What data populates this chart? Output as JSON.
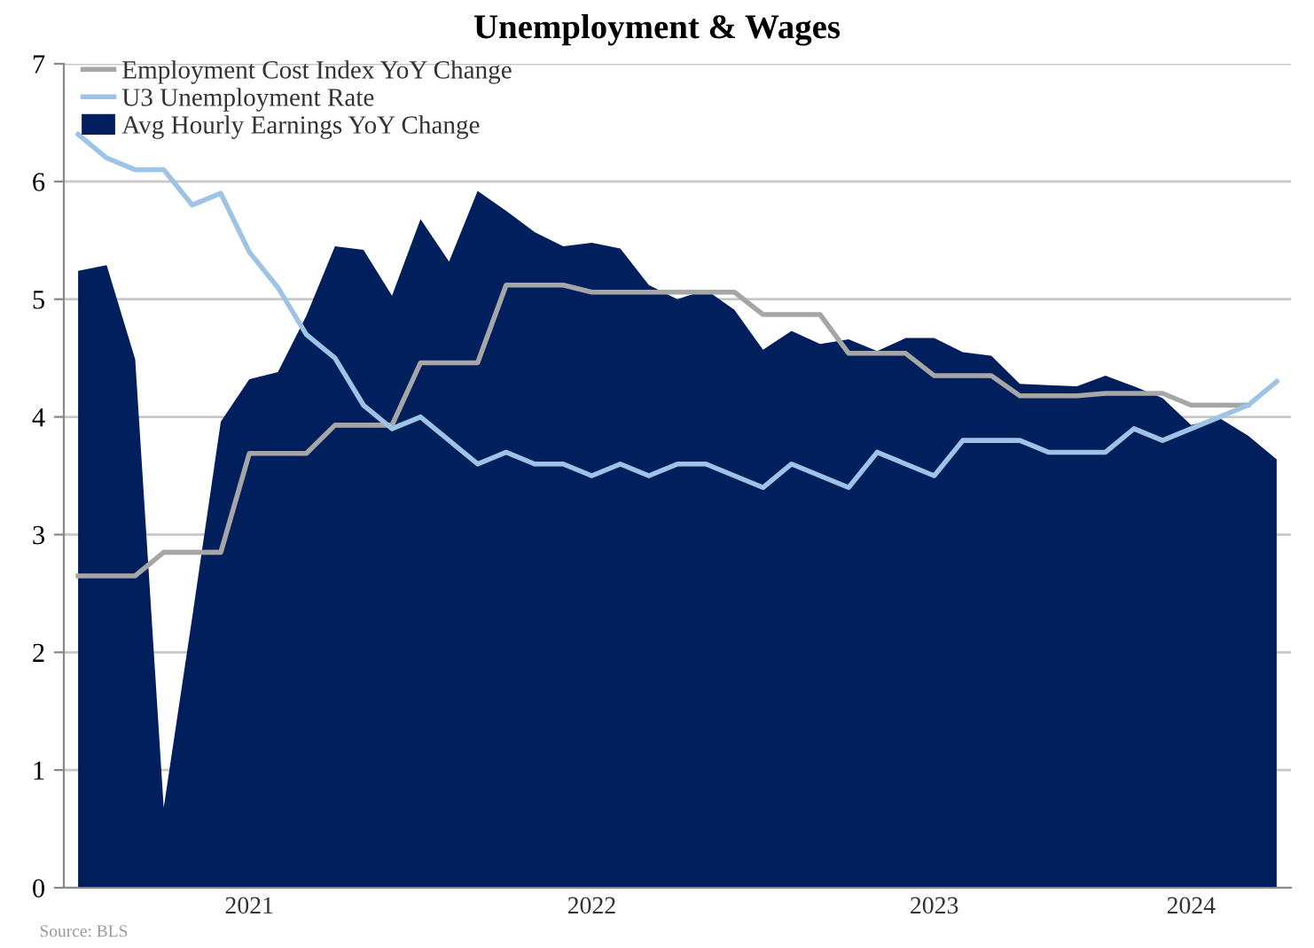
{
  "chart_data": {
    "type": "line",
    "title": "Unemployment & Wages",
    "categories": [
      null,
      null,
      null,
      null,
      null,
      null,
      "2021",
      null,
      null,
      null,
      null,
      null,
      null,
      null,
      null,
      null,
      null,
      null,
      "2022",
      null,
      null,
      null,
      null,
      null,
      null,
      null,
      null,
      null,
      null,
      null,
      "2023",
      null,
      null,
      null,
      null,
      null,
      null,
      null,
      null,
      "2024",
      null,
      null,
      null
    ],
    "series": [
      {
        "name": "Employment Cost Index YoY Change",
        "color": "#a6a6a6",
        "values": [
          2.65,
          2.65,
          2.65,
          2.85,
          2.85,
          2.85,
          3.69,
          3.69,
          3.69,
          3.93,
          3.93,
          3.93,
          4.46,
          4.46,
          4.46,
          5.12,
          5.12,
          5.12,
          5.06,
          5.06,
          5.06,
          5.06,
          5.06,
          5.06,
          4.87,
          4.87,
          4.87,
          4.54,
          4.54,
          4.54,
          4.35,
          4.35,
          4.35,
          4.18,
          4.18,
          4.18,
          4.2,
          4.2,
          4.2,
          4.1,
          4.1,
          4.1,
          null
        ]
      },
      {
        "name": "U3 Unemployment Rate",
        "color": "#9dc3e6",
        "values": [
          6.4,
          6.2,
          6.1,
          6.1,
          5.8,
          5.9,
          5.4,
          5.1,
          4.7,
          4.5,
          4.1,
          3.9,
          4.0,
          3.8,
          3.6,
          3.7,
          3.6,
          3.6,
          3.5,
          3.6,
          3.5,
          3.6,
          3.6,
          3.5,
          3.4,
          3.6,
          3.5,
          3.4,
          3.7,
          3.6,
          3.5,
          3.8,
          3.8,
          3.8,
          3.7,
          3.7,
          3.7,
          3.9,
          3.8,
          3.9,
          4.0,
          4.1,
          4.3
        ]
      },
      {
        "name": "Avg Hourly Earnings YoY Change",
        "type": "area",
        "color": "#001f5c",
        "values": [
          5.24,
          5.29,
          4.49,
          0.68,
          2.3,
          3.96,
          4.32,
          4.38,
          4.86,
          5.45,
          5.42,
          5.03,
          5.68,
          5.32,
          5.92,
          5.75,
          5.57,
          5.45,
          5.48,
          5.43,
          5.12,
          5.0,
          5.08,
          4.91,
          4.57,
          4.73,
          4.62,
          4.66,
          4.56,
          4.67,
          4.67,
          4.55,
          4.52,
          4.28,
          4.27,
          4.26,
          4.35,
          4.26,
          4.16,
          3.93,
          3.99,
          3.84,
          3.64
        ]
      }
    ],
    "ylim": [
      0,
      7
    ],
    "yticks": [
      0,
      1,
      2,
      3,
      4,
      5,
      6,
      7
    ],
    "grid": "y",
    "legend": "top left",
    "line_style": "solid",
    "marker": "none",
    "annotations": [
      "Source: BLS"
    ]
  }
}
